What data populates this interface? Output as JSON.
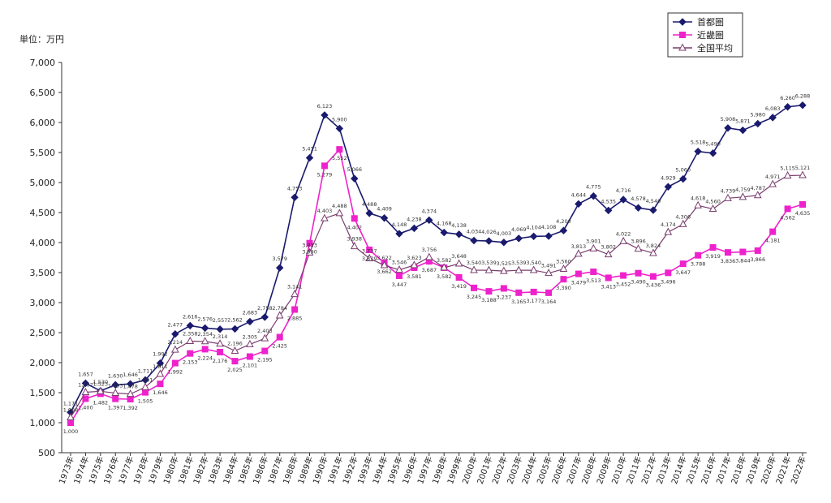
{
  "chart_data": {
    "type": "line",
    "unit_label": "単位：万円",
    "ylim": [
      500,
      7000
    ],
    "yticks": [
      500,
      1000,
      1500,
      2000,
      2500,
      3000,
      3500,
      4000,
      4500,
      5000,
      5500,
      6000,
      6500,
      7000
    ],
    "ytick_labels": [
      "500",
      "1,000",
      "1,500",
      "2,000",
      "2,500",
      "3,000",
      "3,500",
      "4,000",
      "4,500",
      "5,000",
      "5,500",
      "6,000",
      "6,500",
      "7,000"
    ],
    "grid": false,
    "legend_position": "top-right",
    "categories": [
      "1973年",
      "1974年",
      "1975年",
      "1976年",
      "1977年",
      "1978年",
      "1979年",
      "1980年",
      "1981年",
      "1982年",
      "1983年",
      "1984年",
      "1985年",
      "1986年",
      "1987年",
      "1988年",
      "1989年",
      "1990年",
      "1991年",
      "1992年",
      "1993年",
      "1994年",
      "1995年",
      "1996年",
      "1997年",
      "1998年",
      "1999年",
      "2000年",
      "2001年",
      "2002年",
      "2003年",
      "2004年",
      "2005年",
      "2006年",
      "2007年",
      "2008年",
      "2009年",
      "2010年",
      "2011年",
      "2012年",
      "2013年",
      "2014年",
      "2015年",
      "2016年",
      "2017年",
      "2018年",
      "2019年",
      "2020年",
      "2021年",
      "2022年"
    ],
    "series": [
      {
        "name": "首都圏",
        "color": "#1a1a6e",
        "marker": "diamond",
        "values": [
          1171,
          1657,
          1530,
          1630,
          1646,
          1711,
          1992,
          2477,
          2616,
          2576,
          2557,
          2562,
          2683,
          2758,
          3579,
          4753,
          5411,
          6123,
          5900,
          5066,
          4488,
          4409,
          4148,
          4238,
          4374,
          4168,
          4138,
          4034,
          4026,
          4003,
          4069,
          4104,
          4108,
          4200,
          4644,
          4775,
          4535,
          4716,
          4578,
          4540,
          4929,
          5060,
          5518,
          5490,
          5908,
          5871,
          5980,
          6083,
          6260,
          6288
        ],
        "labels": [
          "1,171",
          "1,657",
          "1,530",
          "1,630",
          "1,646",
          "1,711",
          "1,992",
          "2,477",
          "2,616",
          "2,576",
          "2,557",
          "2,562",
          "2,683",
          "2,758",
          "3,579",
          "4,753",
          "5,411",
          "6,123",
          "5,900",
          "5,066",
          "4,488",
          "4,409",
          "4,148",
          "4,238",
          "4,374",
          "4,168",
          "4,138",
          "4,034",
          "4,026",
          "4,003",
          "4,069",
          "4,104",
          "4,108",
          "4,200",
          "4,644",
          "4,775",
          "4,535",
          "4,716",
          "4,578",
          "4,540",
          "4,929",
          "5,060",
          "5,518",
          "5,490",
          "5,908",
          "5,871",
          "5,980",
          "6,083",
          "6,260",
          "6,288"
        ]
      },
      {
        "name": "近畿圏",
        "color": "#ee22cc",
        "marker": "square",
        "values": [
          1000,
          1400,
          1482,
          1397,
          1392,
          1505,
          1646,
          1992,
          2153,
          2224,
          2176,
          2025,
          2101,
          2195,
          2425,
          2885,
          3990,
          5279,
          5552,
          4402,
          3879,
          3662,
          3447,
          3581,
          3687,
          3582,
          3419,
          3245,
          3188,
          3237,
          3165,
          3177,
          3164,
          3390,
          3479,
          3513,
          3413,
          3452,
          3490,
          3436,
          3496,
          3647,
          3788,
          3919,
          3836,
          3844,
          3866,
          4181,
          4562,
          4635
        ],
        "labels": [
          "1,000",
          "1,400",
          "1,482",
          "1,397",
          "1,392",
          "1,505",
          "1,646",
          "1,992",
          "2,153",
          "2,224",
          "2,176",
          "2,025",
          "2,101",
          "2,195",
          "2,425",
          "2,885",
          "3,990",
          "5,279",
          "5,552",
          "4,402",
          "3,879",
          "3,662",
          "3,447",
          "3,581",
          "3,687",
          "3,582",
          "3,419",
          "3,245",
          "3,188",
          "3,237",
          "3,165",
          "3,177",
          "3,164",
          "3,390",
          "3,479",
          "3,513",
          "3,413",
          "3,452",
          "3,490",
          "3,436",
          "3,496",
          "3,647",
          "3,788",
          "3,919",
          "3,836",
          "3,844",
          "3,866",
          "4,181",
          "4,562",
          "4,635"
        ]
      },
      {
        "name": "全国平均",
        "color": "#7a3d6e",
        "marker": "triangle",
        "values": [
          1088,
          1507,
          1523,
          1493,
          1478,
          1591,
          1811,
          2214,
          2358,
          2354,
          2314,
          2196,
          2305,
          2403,
          2784,
          3141,
          3833,
          4403,
          4488,
          3938,
          3737,
          3622,
          3546,
          3623,
          3756,
          3582,
          3648,
          3540,
          3539,
          3525,
          3539,
          3540,
          3491,
          3560,
          3813,
          3901,
          3802,
          4022,
          3896,
          3824,
          4174,
          4306,
          4618,
          4560,
          4739,
          4759,
          4787,
          4971,
          5115,
          5121
        ],
        "labels": [
          "1,088",
          "1,507",
          "1,523",
          "1,493",
          "1,478",
          "1,591",
          "1,811",
          "2,214",
          "2,358",
          "2,354",
          "2,314",
          "2,196",
          "2,305",
          "2,403",
          "2,784",
          "3,141",
          "3,833",
          "4,403",
          "4,488",
          "3,938",
          "3,737",
          "3,622",
          "3,546",
          "3,623",
          "3,756",
          "3,582",
          "3,648",
          "3,540",
          "3,539",
          "3,525",
          "3,539",
          "3,540",
          "3,491",
          "3,560",
          "3,813",
          "3,901",
          "3,802",
          "4,022",
          "3,896",
          "3,824",
          "4,174",
          "4,306",
          "4,618",
          "4,560",
          "4,739",
          "4,759",
          "4,787",
          "4,971",
          "5,115",
          "5,121"
        ]
      }
    ]
  }
}
